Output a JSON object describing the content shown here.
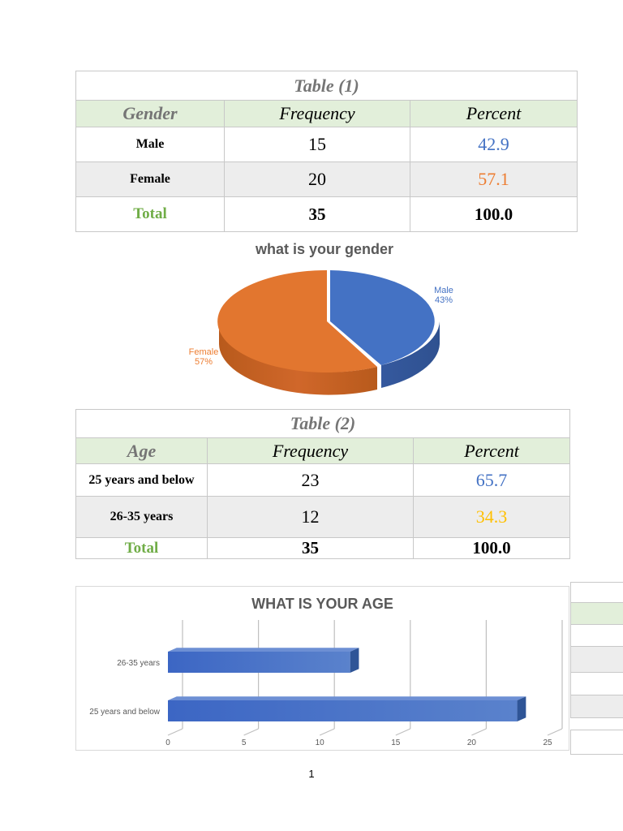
{
  "table1": {
    "caption": "Table (1)",
    "headers": [
      "Gender",
      "Frequency",
      "Percent"
    ],
    "rows": [
      {
        "label": "Male",
        "frequency": "15",
        "percent": "42.9"
      },
      {
        "label": "Female",
        "frequency": "20",
        "percent": "57.1"
      }
    ],
    "total": {
      "label": "Total",
      "frequency": "35",
      "percent": "100.0"
    }
  },
  "table2": {
    "caption": "Table (2)",
    "headers": [
      "Age",
      "Frequency",
      "Percent"
    ],
    "rows": [
      {
        "label": "25 years and below",
        "frequency": "23",
        "percent": "65.7"
      },
      {
        "label": "26-35 years",
        "frequency": "12",
        "percent": "34.3"
      }
    ],
    "total": {
      "label": "Total",
      "frequency": "35",
      "percent": "100.0"
    }
  },
  "chart_data": [
    {
      "type": "pie",
      "title": "what is your gender",
      "slices": [
        {
          "label": "Male",
          "value": 43,
          "display": "43%",
          "color": "#4472c4"
        },
        {
          "label": "Female",
          "value": 57,
          "display": "57%",
          "color": "#ed7d31"
        }
      ]
    },
    {
      "type": "bar",
      "orientation": "horizontal",
      "title": "WHAT IS YOUR AGE",
      "categories": [
        "26-35 years",
        "25 years and below"
      ],
      "values": [
        12,
        23
      ],
      "xlim": [
        0,
        25
      ],
      "xticks": [
        "0",
        "5",
        "10",
        "15",
        "20",
        "25"
      ],
      "color": "#4472c4",
      "grid": true
    }
  ],
  "colors": {
    "blue_value": "#4472c4",
    "orange_value": "#ed7d31",
    "gold_value": "#ffc000",
    "total_green": "#70ad47",
    "header_green": "#e2efda",
    "row_gray": "#ededed"
  },
  "page_number": "1"
}
